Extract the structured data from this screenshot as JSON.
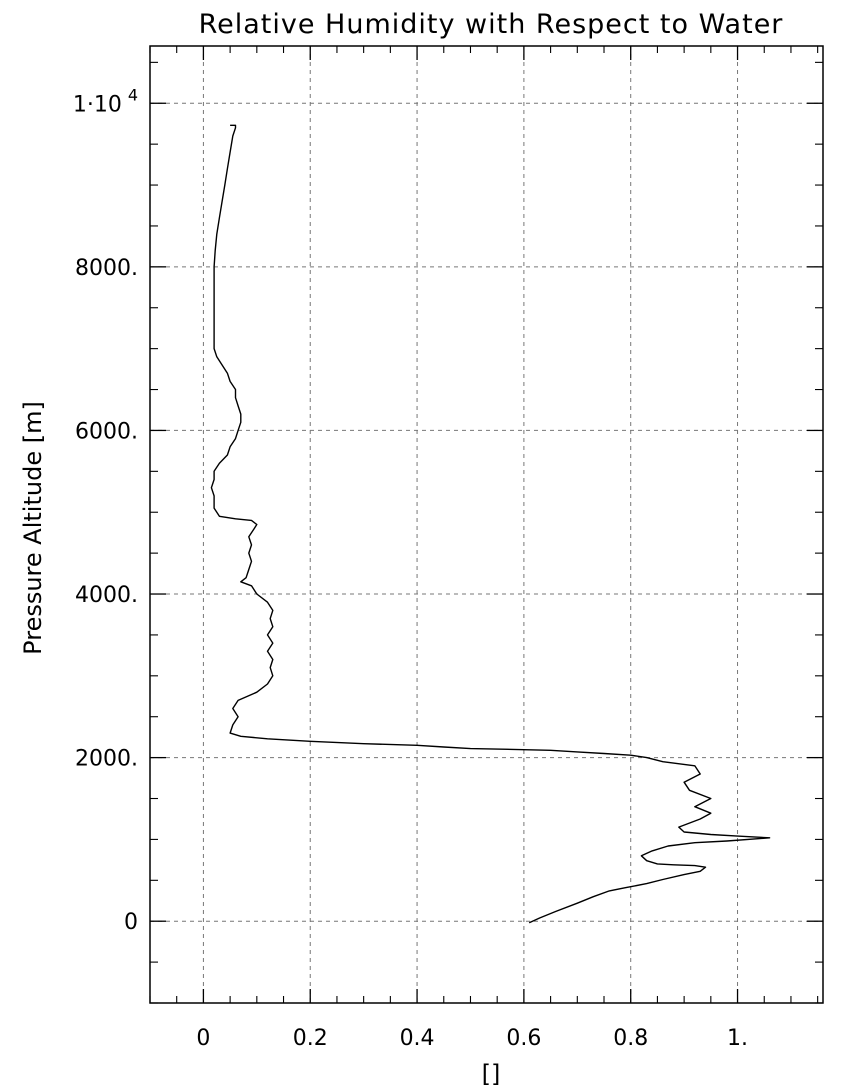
{
  "chart_data": {
    "type": "line",
    "title": "Relative Humidity with Respect to Water",
    "xlabel": "[]",
    "ylabel": "Pressure Altitude [m]",
    "xlim": [
      -0.1,
      1.16
    ],
    "ylim": [
      -1000,
      10700
    ],
    "grid": true,
    "x_ticks": [
      {
        "value": 0,
        "label": "0"
      },
      {
        "value": 0.2,
        "label": "0.2"
      },
      {
        "value": 0.4,
        "label": "0.4"
      },
      {
        "value": 0.6,
        "label": "0.6"
      },
      {
        "value": 0.8,
        "label": "0.8"
      },
      {
        "value": 1.0,
        "label": "1."
      }
    ],
    "y_ticks": [
      {
        "value": 0,
        "label": "0"
      },
      {
        "value": 2000,
        "label": "2000."
      },
      {
        "value": 4000,
        "label": "4000."
      },
      {
        "value": 6000,
        "label": "6000."
      },
      {
        "value": 8000,
        "label": "8000."
      },
      {
        "value": 10000,
        "label": "1·10",
        "exponent": "4"
      }
    ],
    "series": [
      {
        "color": "#000000",
        "points": [
          [
            0.61,
            -20
          ],
          [
            0.63,
            40
          ],
          [
            0.66,
            120
          ],
          [
            0.7,
            220
          ],
          [
            0.73,
            300
          ],
          [
            0.76,
            370
          ],
          [
            0.79,
            410
          ],
          [
            0.83,
            460
          ],
          [
            0.86,
            510
          ],
          [
            0.9,
            570
          ],
          [
            0.93,
            610
          ],
          [
            0.94,
            660
          ],
          [
            0.92,
            680
          ],
          [
            0.88,
            690
          ],
          [
            0.85,
            700
          ],
          [
            0.83,
            740
          ],
          [
            0.82,
            800
          ],
          [
            0.84,
            860
          ],
          [
            0.87,
            920
          ],
          [
            0.92,
            960
          ],
          [
            0.98,
            980
          ],
          [
            1.06,
            1020
          ],
          [
            1.0,
            1040
          ],
          [
            0.95,
            1060
          ],
          [
            0.9,
            1090
          ],
          [
            0.89,
            1150
          ],
          [
            0.93,
            1250
          ],
          [
            0.95,
            1320
          ],
          [
            0.92,
            1400
          ],
          [
            0.95,
            1500
          ],
          [
            0.91,
            1600
          ],
          [
            0.9,
            1700
          ],
          [
            0.93,
            1800
          ],
          [
            0.92,
            1900
          ],
          [
            0.86,
            1950
          ],
          [
            0.83,
            2000
          ],
          [
            0.8,
            2030
          ],
          [
            0.75,
            2050
          ],
          [
            0.7,
            2070
          ],
          [
            0.65,
            2090
          ],
          [
            0.58,
            2100
          ],
          [
            0.5,
            2110
          ],
          [
            0.45,
            2130
          ],
          [
            0.4,
            2150
          ],
          [
            0.3,
            2170
          ],
          [
            0.2,
            2200
          ],
          [
            0.12,
            2230
          ],
          [
            0.07,
            2260
          ],
          [
            0.05,
            2300
          ],
          [
            0.055,
            2400
          ],
          [
            0.065,
            2500
          ],
          [
            0.055,
            2600
          ],
          [
            0.065,
            2700
          ],
          [
            0.1,
            2800
          ],
          [
            0.12,
            2900
          ],
          [
            0.13,
            3000
          ],
          [
            0.125,
            3100
          ],
          [
            0.13,
            3200
          ],
          [
            0.12,
            3300
          ],
          [
            0.13,
            3400
          ],
          [
            0.12,
            3500
          ],
          [
            0.13,
            3600
          ],
          [
            0.125,
            3700
          ],
          [
            0.13,
            3800
          ],
          [
            0.12,
            3900
          ],
          [
            0.1,
            4000
          ],
          [
            0.09,
            4100
          ],
          [
            0.07,
            4150
          ],
          [
            0.08,
            4200
          ],
          [
            0.085,
            4300
          ],
          [
            0.09,
            4400
          ],
          [
            0.085,
            4500
          ],
          [
            0.09,
            4600
          ],
          [
            0.085,
            4700
          ],
          [
            0.095,
            4800
          ],
          [
            0.1,
            4850
          ],
          [
            0.09,
            4900
          ],
          [
            0.06,
            4920
          ],
          [
            0.03,
            4950
          ],
          [
            0.02,
            5050
          ],
          [
            0.02,
            5200
          ],
          [
            0.015,
            5300
          ],
          [
            0.02,
            5400
          ],
          [
            0.02,
            5500
          ],
          [
            0.03,
            5600
          ],
          [
            0.045,
            5700
          ],
          [
            0.05,
            5800
          ],
          [
            0.06,
            5900
          ],
          [
            0.065,
            6000
          ],
          [
            0.07,
            6100
          ],
          [
            0.07,
            6200
          ],
          [
            0.065,
            6300
          ],
          [
            0.06,
            6400
          ],
          [
            0.06,
            6500
          ],
          [
            0.05,
            6600
          ],
          [
            0.045,
            6700
          ],
          [
            0.035,
            6800
          ],
          [
            0.025,
            6900
          ],
          [
            0.02,
            7000
          ],
          [
            0.02,
            7200
          ],
          [
            0.02,
            7500
          ],
          [
            0.02,
            7800
          ],
          [
            0.02,
            8000
          ],
          [
            0.022,
            8200
          ],
          [
            0.025,
            8400
          ],
          [
            0.03,
            8600
          ],
          [
            0.035,
            8800
          ],
          [
            0.04,
            9000
          ],
          [
            0.045,
            9200
          ],
          [
            0.05,
            9400
          ],
          [
            0.055,
            9600
          ],
          [
            0.06,
            9700
          ],
          [
            0.06,
            9730
          ],
          [
            0.05,
            9730
          ]
        ]
      }
    ]
  }
}
